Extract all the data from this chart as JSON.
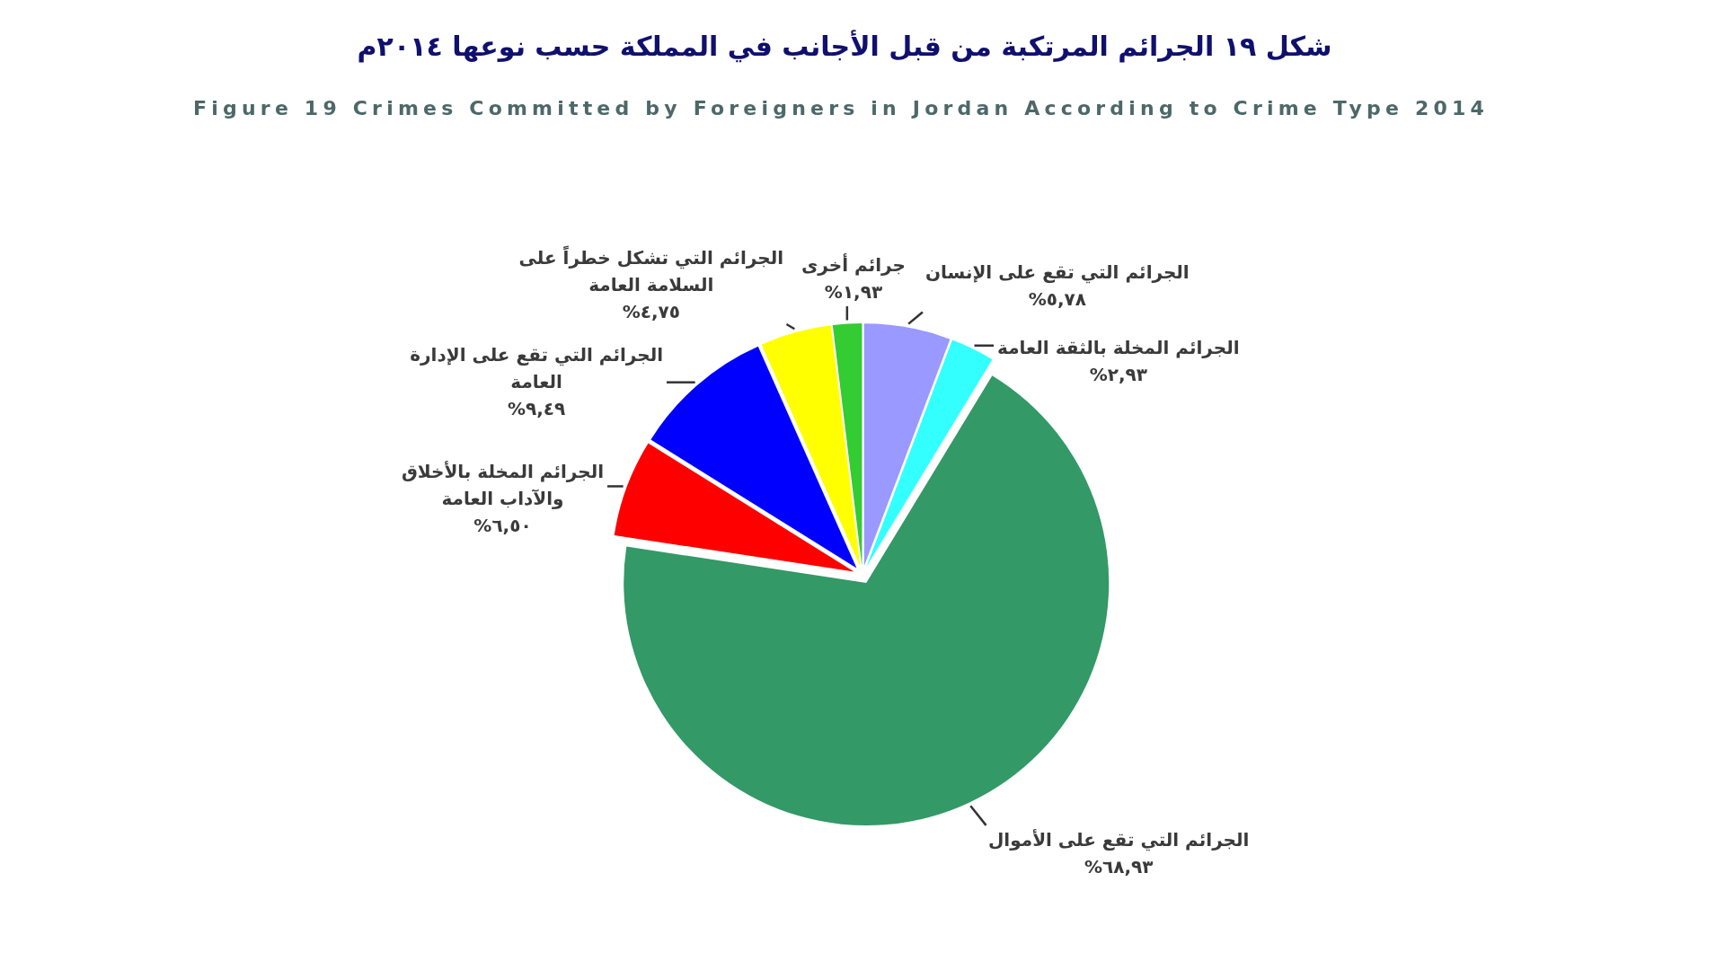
{
  "chart_data": {
    "type": "pie",
    "title": "شكل ١٩ الجرائم المرتكبة من قبل الأجانب في المملكة حسب نوعها ٢٠١٤م",
    "subtitle": "Figure 19 Crimes Committed by Foreigners in Jordan According to Crime Type 2014",
    "categories": [
      "الجرائم التي تقع على الإنسان",
      "الجرائم المخلة بالثقة العامة",
      "الجرائم التي تقع على الأموال",
      "الجرائم المخلة بالأخلاق\nوالآداب العامة",
      "الجرائم التي تقع على الإدارة\nالعامة",
      "الجرائم التي تشكل خطراً على\nالسلامة العامة",
      "جرائم أخرى"
    ],
    "values": [
      5.78,
      2.93,
      68.93,
      6.5,
      9.49,
      4.75,
      1.93
    ],
    "value_labels": [
      "٥,٧٨%",
      "٢,٩٣%",
      "٦٨,٩٣%",
      "٦,٥٠%",
      "٩,٤٩%",
      "٤,٧٥%",
      "١,٩٣%"
    ],
    "colors": [
      "#9999ff",
      "#33ffff",
      "#339966",
      "#ff0000",
      "#0000ff",
      "#ffff00",
      "#33cc33"
    ]
  }
}
